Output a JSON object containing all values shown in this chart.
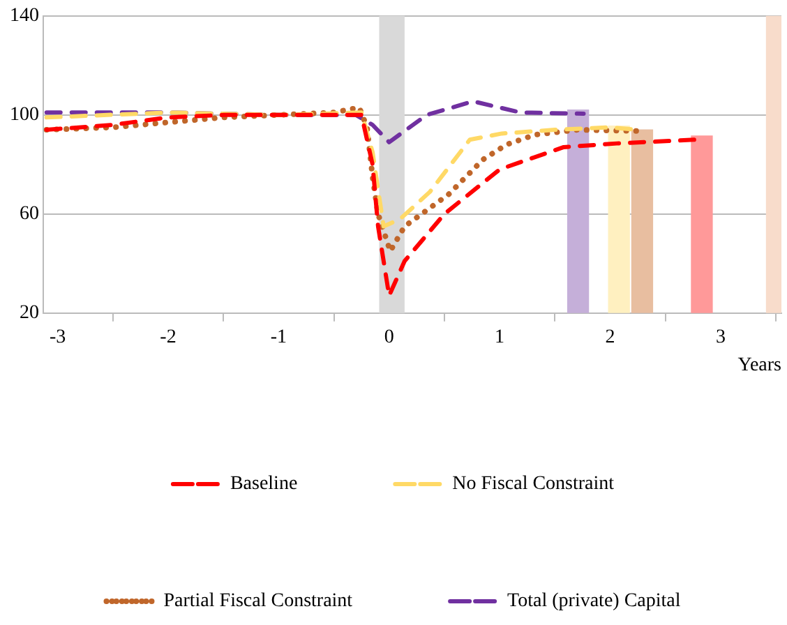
{
  "chart_data": {
    "type": "line",
    "xlabel": "Years",
    "xlim": [
      -3.13,
      3.55
    ],
    "ylim": [
      20,
      140
    ],
    "yticks": [
      20,
      60,
      100,
      140
    ],
    "xticks": [
      -3,
      -2,
      -1,
      0,
      1,
      2,
      3
    ],
    "grid": "y",
    "legend": "bottom",
    "marker": "none",
    "bands": [
      {
        "axis": "x",
        "from": -0.09,
        "to": 0.14,
        "color": "#d9d9d9"
      },
      {
        "axis": "x",
        "from": 3.41,
        "to": 3.55,
        "color": "#f8dccb"
      }
    ],
    "series": [
      {
        "type": "bar",
        "x": [
          1.71,
          2.08,
          2.29,
          2.83
        ],
        "values": [
          102,
          95.5,
          94,
          91.5
        ],
        "colors": [
          "#c5afd9",
          "#fff0c0",
          "#e8bea0",
          "#ff9999"
        ]
      },
      {
        "name": "Baseline",
        "color": "#ff0000",
        "line_style": "dashed",
        "x": [
          -3.1,
          -2.5,
          -2,
          -1.5,
          -1,
          -0.5,
          -0.25,
          -0.15,
          -0.1,
          0,
          0.14,
          0.5,
          1,
          1.58,
          2.06,
          2.76
        ],
        "values": [
          94,
          96,
          99,
          100,
          100,
          100,
          100,
          80,
          55,
          27,
          41,
          60,
          78,
          87,
          88.5,
          90
        ]
      },
      {
        "name": "No Fiscal Constraint",
        "color": "#ffd966",
        "line_style": "dashed",
        "x": [
          -3.1,
          -2,
          -1,
          -0.25,
          -0.15,
          -0.05,
          0.1,
          0.37,
          0.73,
          1.02,
          1.5,
          2,
          2.24
        ],
        "values": [
          99,
          101,
          100,
          101,
          85,
          55,
          58,
          69,
          90,
          92.5,
          94,
          95,
          94
        ]
      },
      {
        "name": "Partial Fiscal Constraint",
        "color": "#c0662a",
        "line_style": "dotted",
        "x": [
          -3.1,
          -2.5,
          -2,
          -1.5,
          -1,
          -0.5,
          -0.27,
          -0.2,
          -0.15,
          -0.1,
          0.01,
          0.14,
          0.54,
          0.85,
          1.06,
          1.32,
          1.7,
          2.3
        ],
        "values": [
          94,
          95,
          97,
          99,
          100,
          101,
          103,
          95,
          75,
          60,
          45,
          55,
          68,
          82,
          88,
          92,
          94,
          93.5
        ]
      },
      {
        "name": "Total (private) Capital",
        "color": "#7030a0",
        "line_style": "dashed",
        "x": [
          -3.1,
          -2,
          -1,
          -0.3,
          -0.15,
          0,
          0.34,
          0.76,
          1.19,
          1.76
        ],
        "values": [
          101,
          101,
          100,
          100,
          96,
          89,
          100,
          105.5,
          101,
          100.5
        ]
      }
    ]
  }
}
